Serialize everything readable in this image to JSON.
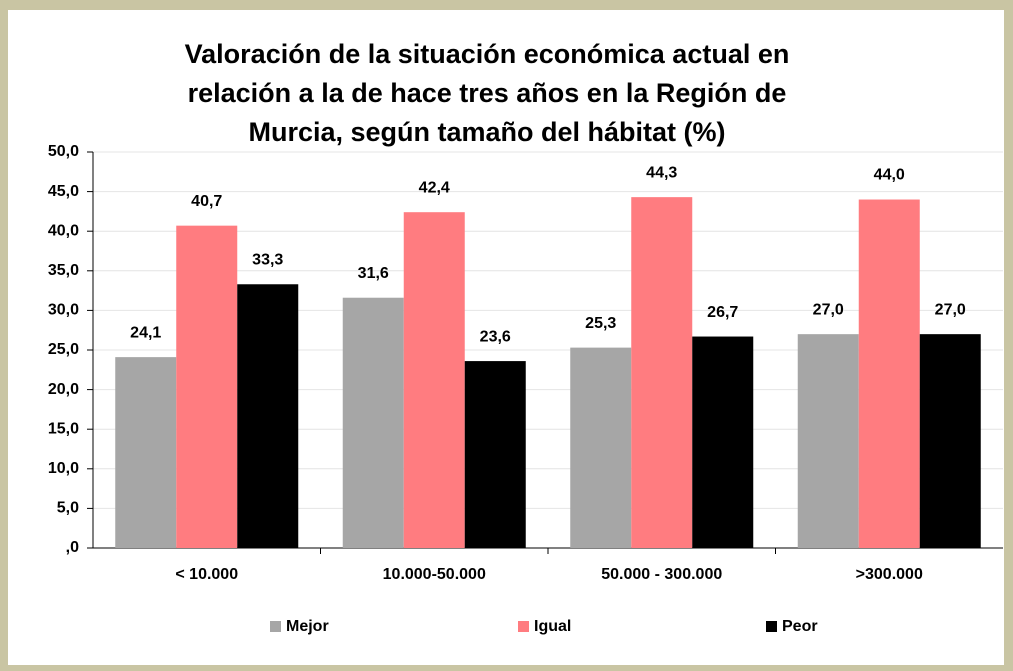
{
  "chart_data": {
    "type": "bar",
    "title": [
      "Valoración de la situación económica actual en",
      "relación a la de hace tres años en la Región de",
      "Murcia, según tamaño del hábitat (%)"
    ],
    "categories": [
      "< 10.000",
      "10.000-50.000",
      "50.000 - 300.000",
      ">300.000"
    ],
    "series": [
      {
        "name": "Mejor",
        "color": "#a6a6a6",
        "values": [
          24.1,
          31.6,
          25.3,
          27.0
        ],
        "value_labels": [
          "24,1",
          "31,6",
          "25,3",
          "27,0"
        ]
      },
      {
        "name": "Igual",
        "color": "#ff7c80",
        "values": [
          40.7,
          42.4,
          44.3,
          44.0
        ],
        "value_labels": [
          "40,7",
          "42,4",
          "44,3",
          "44,0"
        ]
      },
      {
        "name": "Peor",
        "color": "#000000",
        "values": [
          33.3,
          23.6,
          26.7,
          27.0
        ],
        "value_labels": [
          "33,3",
          "23,6",
          "26,7",
          "27,0"
        ]
      }
    ],
    "ylim": [
      0,
      50
    ],
    "yticks": [
      {
        "value": 0,
        "label": ",0"
      },
      {
        "value": 5,
        "label": "5,0"
      },
      {
        "value": 10,
        "label": "10,0"
      },
      {
        "value": 15,
        "label": "15,0"
      },
      {
        "value": 20,
        "label": "20,0"
      },
      {
        "value": 25,
        "label": "25,0"
      },
      {
        "value": 30,
        "label": "30,0"
      },
      {
        "value": 35,
        "label": "35,0"
      },
      {
        "value": 40,
        "label": "40,0"
      },
      {
        "value": 45,
        "label": "45,0"
      },
      {
        "value": 50,
        "label": "50,0"
      }
    ],
    "grid": true,
    "legend": "bottom"
  }
}
